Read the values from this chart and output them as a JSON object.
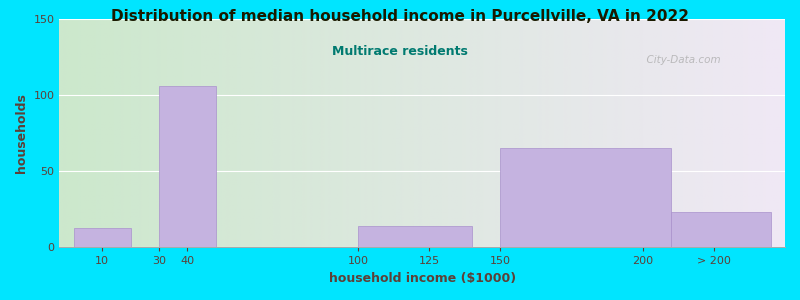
{
  "title": "Distribution of median household income in Purcellville, VA in 2022",
  "subtitle": "Multirace residents",
  "xlabel": "household income ($1000)",
  "ylabel": "households",
  "tick_labels": [
    "10",
    "30",
    "40",
    "100",
    "125",
    "150",
    "200",
    "> 200"
  ],
  "tick_positions": [
    10,
    30,
    40,
    100,
    125,
    150,
    200,
    225
  ],
  "bar_left_edges": [
    0,
    30,
    100,
    150,
    210
  ],
  "bar_right_edges": [
    20,
    50,
    140,
    210,
    245
  ],
  "bar_heights": [
    13,
    106,
    14,
    65,
    23
  ],
  "bar_color": "#c5b3e0",
  "bar_edge_color": "#a991cc",
  "title_color": "#1a1a00",
  "subtitle_color": "#007a70",
  "label_color": "#5d4037",
  "tick_color": "#5d4037",
  "bg_outer": "#00e5ff",
  "bg_left": "#cce8cc",
  "bg_right": "#f0e8f5",
  "watermark": "  City-Data.com",
  "ylim": [
    0,
    150
  ],
  "yticks": [
    0,
    50,
    100,
    150
  ],
  "xlim": [
    -5,
    250
  ],
  "figsize": [
    8.0,
    3.0
  ],
  "dpi": 100
}
